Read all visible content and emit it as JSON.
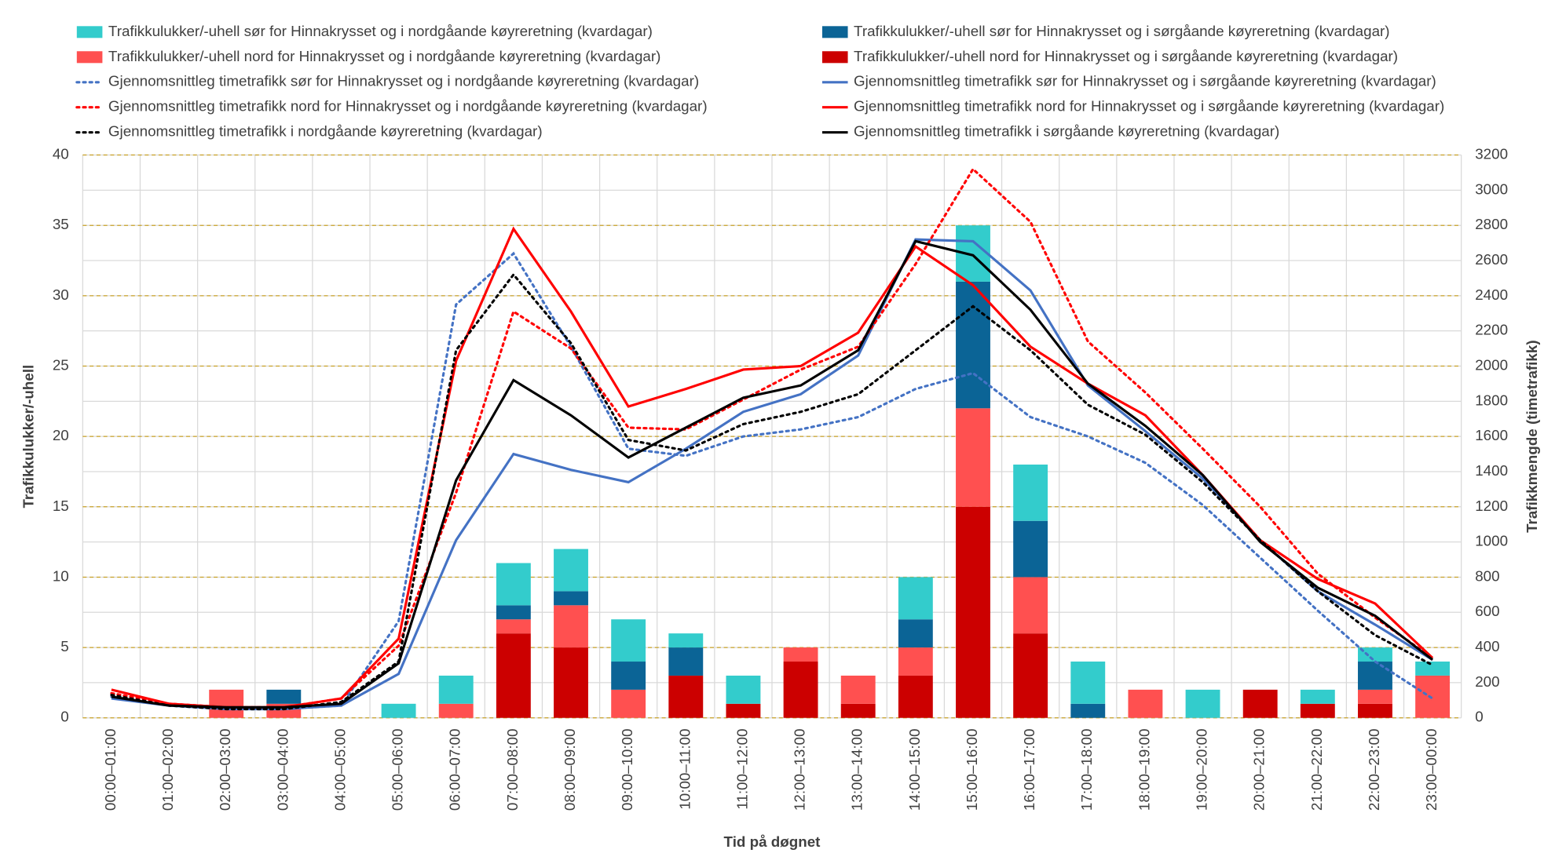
{
  "chart_data": {
    "type": "bar",
    "y_label": "Trafikkulukker/-uhell",
    "y2_label": "Trafikkmengde (timetrafikk)",
    "x_label": "Tid på døgnet",
    "categories": [
      "00:00–01:00",
      "01:00–02:00",
      "02:00–03:00",
      "03:00–04:00",
      "04:00–05:00",
      "05:00–06:00",
      "06:00–07:00",
      "07:00–08:00",
      "08:00–09:00",
      "09:00–10:00",
      "10:00–11:00",
      "11:00–12:00",
      "12:00–13:00",
      "13:00–14:00",
      "14:00–15:00",
      "15:00–16:00",
      "16:00–17:00",
      "17:00–18:00",
      "18:00–19:00",
      "19:00–20:00",
      "20:00–21:00",
      "21:00–22:00",
      "22:00–23:00",
      "23:00–00:00"
    ],
    "ylim": [
      0,
      40
    ],
    "yticks": [
      0,
      5,
      10,
      15,
      20,
      25,
      30,
      35,
      40
    ],
    "y2lim": [
      0,
      3200
    ],
    "y2ticks": [
      0,
      200,
      400,
      600,
      800,
      1000,
      1200,
      1400,
      1600,
      1800,
      2000,
      2200,
      2400,
      2600,
      2800,
      3000,
      3200
    ],
    "grid": true,
    "stacked": true,
    "series": [
      {
        "name": "Trafikkulukker/-uhell sør for Hinnakrysset og i nordgåande køyreretning (kvardagar)",
        "type": "bar",
        "color": "#33cccc",
        "values": [
          0,
          0,
          0,
          0,
          0,
          1,
          2,
          3,
          3,
          3,
          1,
          2,
          0,
          0,
          3,
          4,
          4,
          3,
          0,
          2,
          0,
          1,
          1,
          1
        ]
      },
      {
        "name": "Trafikkulukker/-uhell sør for Hinnakrysset og i sørgåande køyreretning (kvardagar)",
        "type": "bar",
        "color": "#0b6496",
        "values": [
          0,
          0,
          0,
          1,
          0,
          0,
          0,
          1,
          1,
          2,
          2,
          0,
          0,
          0,
          2,
          9,
          4,
          1,
          0,
          0,
          0,
          0,
          2,
          0
        ]
      },
      {
        "name": "Trafikkulukker/-uhell nord for Hinnakrysset og i nordgåande køyreretning (kvardagar)",
        "type": "bar",
        "color": "#ff5050",
        "values": [
          0,
          0,
          2,
          1,
          0,
          0,
          1,
          1,
          3,
          2,
          0,
          0,
          1,
          2,
          2,
          7,
          4,
          0,
          2,
          0,
          0,
          0,
          1,
          3
        ]
      },
      {
        "name": "Trafikkulukker/-uhell nord for Hinnakrysset og i sørgåande køyreretning (kvardagar)",
        "type": "bar",
        "color": "#cc0000",
        "values": [
          0,
          0,
          0,
          0,
          0,
          0,
          0,
          6,
          5,
          0,
          3,
          1,
          4,
          1,
          3,
          15,
          6,
          0,
          0,
          0,
          2,
          1,
          1,
          0
        ]
      },
      {
        "name": "Gjennomsnittleg timetrafikk sør for Hinnakrysset og i nordgåande køyreretning (kvardagar)",
        "type": "line",
        "axis": "y2",
        "dash": "dotted",
        "color": "#4472c4",
        "values": [
          120,
          70,
          50,
          50,
          70,
          550,
          2350,
          2640,
          2110,
          1530,
          1490,
          1600,
          1640,
          1710,
          1870,
          1960,
          1710,
          1600,
          1450,
          1210,
          910,
          610,
          320,
          110
        ]
      },
      {
        "name": "Gjennomsnittleg timetrafikk sør for Hinnakrysset og i sørgåande køyreretning (kvardagar)",
        "type": "line",
        "axis": "y2",
        "dash": "solid",
        "color": "#4472c4",
        "values": [
          110,
          70,
          50,
          50,
          70,
          250,
          1010,
          1500,
          1410,
          1340,
          1530,
          1740,
          1840,
          2060,
          2720,
          2710,
          2430,
          1890,
          1630,
          1360,
          1010,
          720,
          530,
          330
        ]
      },
      {
        "name": "Gjennomsnittleg timetrafikk nord for Hinnakrysset og i nordgåande køyreretning (kvardagar)",
        "type": "line",
        "axis": "y2",
        "dash": "dotted",
        "color": "#ff0000",
        "values": [
          140,
          80,
          60,
          60,
          110,
          410,
          1280,
          2310,
          2100,
          1650,
          1640,
          1810,
          1980,
          2110,
          2580,
          3120,
          2820,
          2140,
          1850,
          1530,
          1200,
          820,
          570,
          340
        ]
      },
      {
        "name": "Gjennomsnittleg timetrafikk nord for Hinnakrysset og i sørgåande køyreretning (kvardagar)",
        "type": "line",
        "axis": "y2",
        "dash": "solid",
        "color": "#ff0000",
        "values": [
          160,
          80,
          60,
          60,
          110,
          450,
          2030,
          2780,
          2310,
          1770,
          1870,
          1980,
          2000,
          2190,
          2680,
          2460,
          2110,
          1900,
          1720,
          1380,
          1010,
          790,
          650,
          340
        ]
      },
      {
        "name": "Gjennomsnittleg timetrafikk i nordgåande køyreretning (kvardagar)",
        "type": "line",
        "axis": "y2",
        "dash": "dotted",
        "color": "#000000",
        "values": [
          130,
          70,
          50,
          50,
          90,
          320,
          2090,
          2520,
          2130,
          1580,
          1520,
          1670,
          1740,
          1840,
          2090,
          2340,
          2090,
          1780,
          1610,
          1340,
          1010,
          720,
          470,
          300
        ]
      },
      {
        "name": "Gjennomsnittleg timetrafikk i sørgåande køyreretning (kvardagar)",
        "type": "line",
        "axis": "y2",
        "dash": "solid",
        "color": "#000000",
        "values": [
          120,
          70,
          60,
          60,
          80,
          310,
          1350,
          1920,
          1720,
          1480,
          1650,
          1820,
          1890,
          2090,
          2710,
          2630,
          2320,
          1900,
          1660,
          1380,
          1000,
          740,
          580,
          330
        ]
      }
    ]
  }
}
